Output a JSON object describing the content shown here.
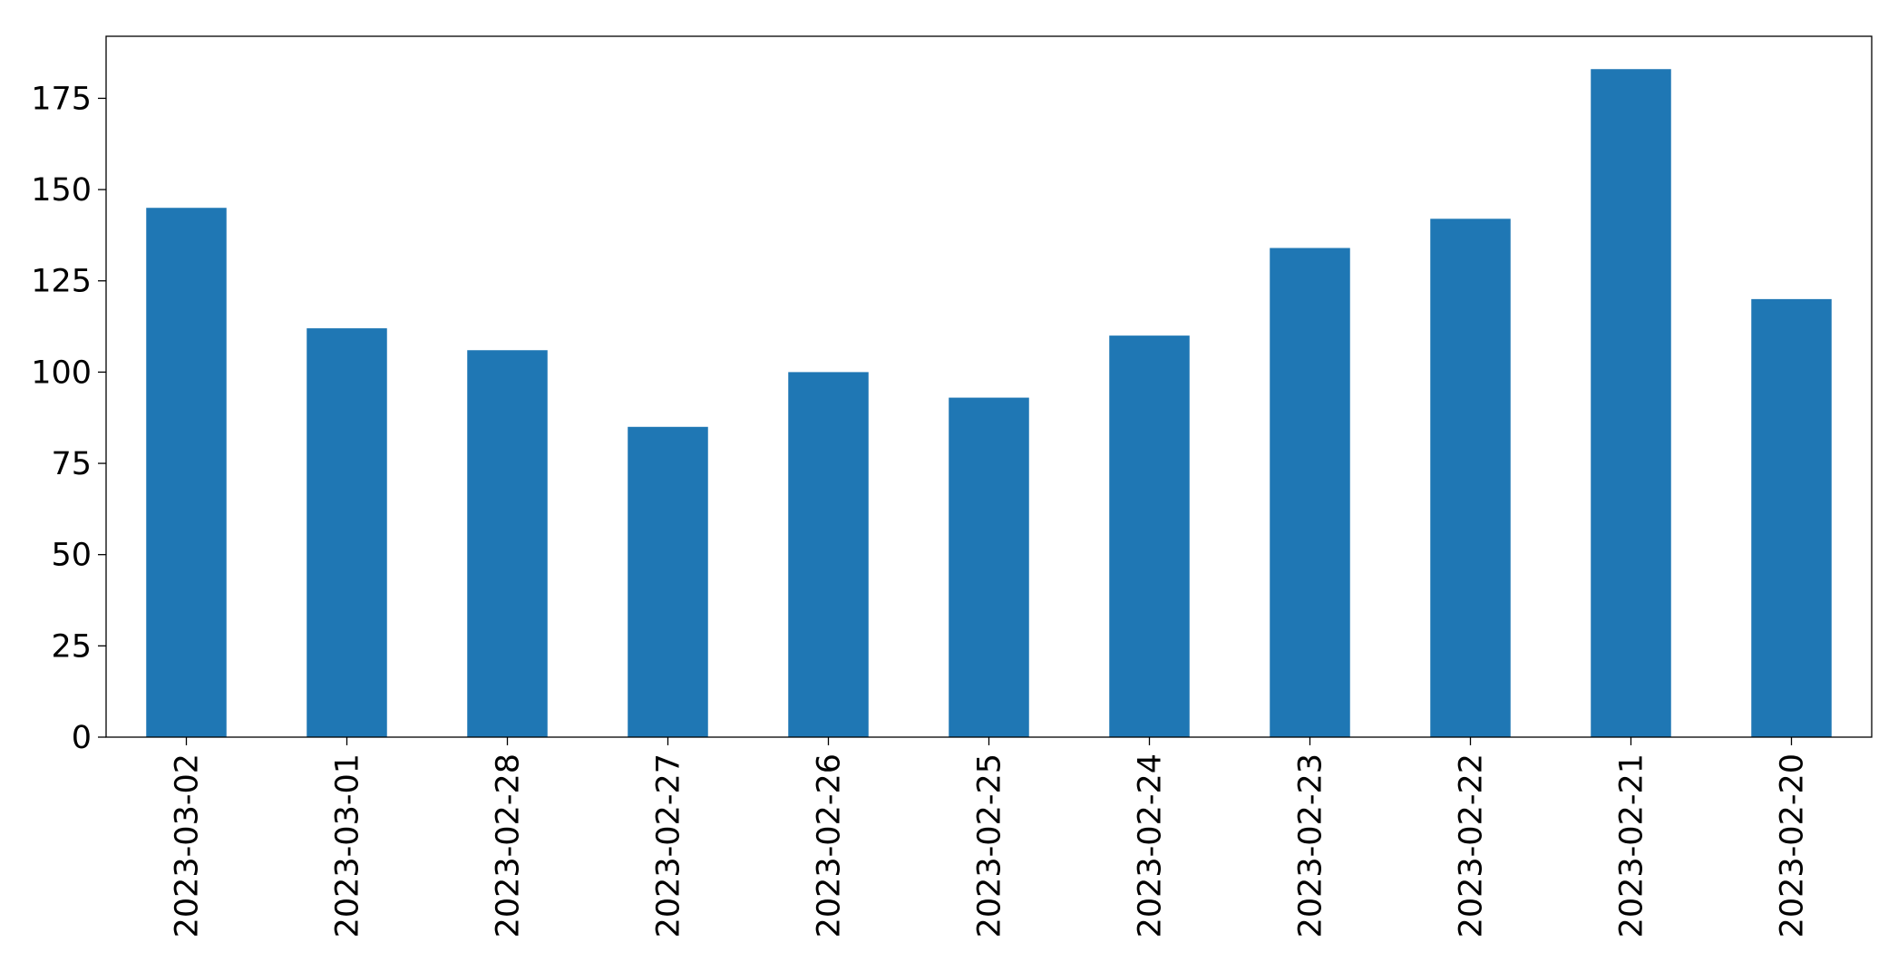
{
  "chart_data": {
    "type": "bar",
    "categories": [
      "2023-03-02",
      "2023-03-01",
      "2023-02-28",
      "2023-02-27",
      "2023-02-26",
      "2023-02-25",
      "2023-02-24",
      "2023-02-23",
      "2023-02-22",
      "2023-02-21",
      "2023-02-20"
    ],
    "values": [
      145,
      112,
      106,
      85,
      100,
      93,
      110,
      134,
      142,
      183,
      120
    ],
    "color": "#1f77b4",
    "ylim": [
      0,
      192
    ],
    "yticks": [
      0,
      25,
      50,
      75,
      100,
      125,
      150,
      175
    ],
    "grid": false
  }
}
